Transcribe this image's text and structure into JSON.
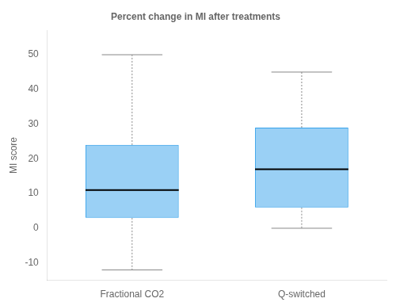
{
  "chart_data": {
    "type": "box",
    "title": "Percent change in MI after treatments",
    "ylabel": "MI score",
    "categories": [
      "Fractional CO2",
      "Q-switched"
    ],
    "boxes": [
      {
        "median": 11,
        "q1": 3,
        "q3": 24,
        "whisker_low": -12,
        "whisker_high": 50
      },
      {
        "median": 17,
        "q1": 6,
        "q3": 29,
        "whisker_low": 0,
        "whisker_high": 45
      }
    ],
    "ylim": [
      -15,
      57
    ],
    "yticks": [
      -10,
      0,
      10,
      20,
      30,
      40,
      50
    ],
    "line_style": "dotted",
    "grid": false
  }
}
